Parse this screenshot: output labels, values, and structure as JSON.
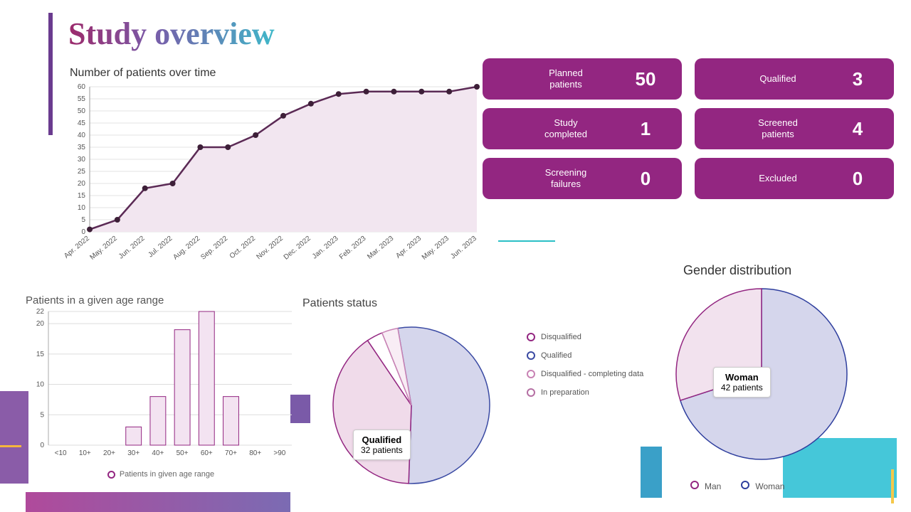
{
  "title": "Study overview",
  "line_chart": {
    "title": "Number of patients over time",
    "xlabels": [
      "Apr. 2022",
      "May. 2022",
      "Jun. 2022",
      "Jul. 2022",
      "Aug. 2022",
      "Sep. 2022",
      "Oct. 2022",
      "Nov. 2022",
      "Dec. 2022",
      "Jan. 2023",
      "Feb. 2023",
      "Mar. 2023",
      "Apr. 2023",
      "May. 2023",
      "Jun. 2023"
    ],
    "values": [
      1,
      5,
      18,
      20,
      35,
      35,
      40,
      48,
      53,
      57,
      58,
      58,
      58,
      58,
      60
    ],
    "ymin": 0,
    "ymax": 60,
    "ystep": 5,
    "line_color": "#5b2a55",
    "fill_color": "#f2e6f0",
    "grid_color": "#e3e3e3",
    "marker_color": "#3d1f38",
    "marker_radius": 4
  },
  "cards": [
    {
      "label": "Planned\npatients",
      "value": "50"
    },
    {
      "label": "Qualified",
      "value": "3"
    },
    {
      "label": "Study\ncompleted",
      "value": "1"
    },
    {
      "label": "Screened\npatients",
      "value": "4"
    },
    {
      "label": "Screening\nfailures",
      "value": "0"
    },
    {
      "label": "Excluded",
      "value": "0"
    }
  ],
  "card_bg": "#932681",
  "bar_chart": {
    "title": "Patients in a given age range",
    "categories": [
      "<10",
      "10+",
      "20+",
      "30+",
      "40+",
      "50+",
      "60+",
      "70+",
      "80+",
      ">90"
    ],
    "values": [
      0,
      0,
      0,
      3,
      8,
      19,
      22,
      8,
      0,
      0
    ],
    "yticks": [
      0,
      5,
      10,
      15,
      20,
      22
    ],
    "bar_fill": "#f3e3f1",
    "bar_stroke": "#932681",
    "grid_color": "#ddd",
    "legend": "Patients in given age range"
  },
  "status_pie": {
    "title": "Patients status",
    "slices": [
      {
        "label": "Qualified",
        "value": 32,
        "fill": "#d5d6ec",
        "stroke": "#3a4aa3"
      },
      {
        "label": "Disqualified",
        "value": 24,
        "fill": "#f0dbea",
        "stroke": "#932681"
      },
      {
        "label": "In preparation",
        "value": 2,
        "fill": "#ffffff",
        "stroke": "#932681"
      },
      {
        "label": "Disqualified - completing data",
        "value": 2,
        "fill": "#f8edf5",
        "stroke": "#c882b4"
      }
    ],
    "tooltip": {
      "title": "Qualified",
      "sub": "32 patients"
    },
    "legend": [
      {
        "label": "Disqualified",
        "color": "#932681"
      },
      {
        "label": "Qualified",
        "color": "#3a4aa3"
      },
      {
        "label": "Disqualified - completing data",
        "color": "#c882b4"
      },
      {
        "label": "In preparation",
        "color": "#b56fa3"
      }
    ]
  },
  "gender_pie": {
    "title": "Gender distribution",
    "slices": [
      {
        "label": "Woman",
        "value": 42,
        "fill": "#d5d6ec",
        "stroke": "#2f3f9e"
      },
      {
        "label": "Man",
        "value": 18,
        "fill": "#f2e2ee",
        "stroke": "#932681"
      }
    ],
    "tooltip": {
      "title": "Woman",
      "sub": "42 patients"
    },
    "legend": [
      {
        "label": "Man",
        "color": "#932681"
      },
      {
        "label": "Woman",
        "color": "#2f3f9e"
      }
    ]
  }
}
